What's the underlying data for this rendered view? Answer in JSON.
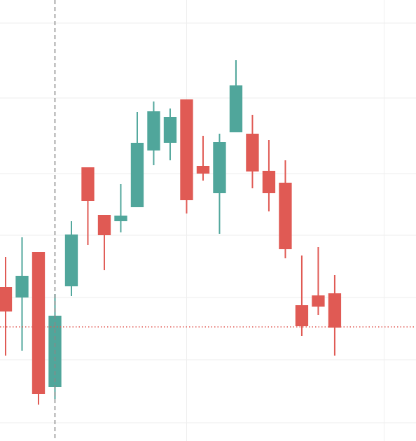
{
  "chart_data": {
    "type": "candlestick",
    "x": [
      0,
      1,
      2,
      3,
      4,
      5,
      6,
      7,
      8,
      9,
      10,
      11,
      12,
      13,
      14,
      15,
      16,
      17,
      18,
      19,
      20
    ],
    "open": [
      220,
      205,
      270,
      77,
      221,
      391,
      323,
      314,
      334,
      415,
      426,
      488,
      393,
      354,
      441,
      439,
      386,
      369,
      194,
      208,
      211
    ],
    "high": [
      263,
      291,
      270,
      210,
      314,
      391,
      323,
      367,
      470,
      485,
      475,
      488,
      436,
      439,
      544,
      466,
      430,
      401,
      265,
      277,
      237
    ],
    "low": [
      122,
      129,
      52,
      60,
      207,
      280,
      244,
      298,
      334,
      394,
      401,
      325,
      372,
      296,
      441,
      361,
      328,
      261,
      150,
      180,
      122
    ],
    "close": [
      185,
      236,
      67,
      179,
      295,
      343,
      294,
      322,
      426,
      471,
      463,
      344,
      382,
      427,
      508,
      385,
      354,
      274,
      164,
      192,
      162
    ],
    "up_color": "#50a69b",
    "down_color": "#e05a54",
    "xlim": [
      -0.34,
      24.94
    ],
    "ylim": [
      0,
      630
    ],
    "xticks": [
      11,
      23
    ],
    "yticks": [
      26,
      116,
      205,
      294,
      382,
      490,
      597
    ],
    "grid": true,
    "crosshair_x": 3,
    "price_line": 163
  }
}
